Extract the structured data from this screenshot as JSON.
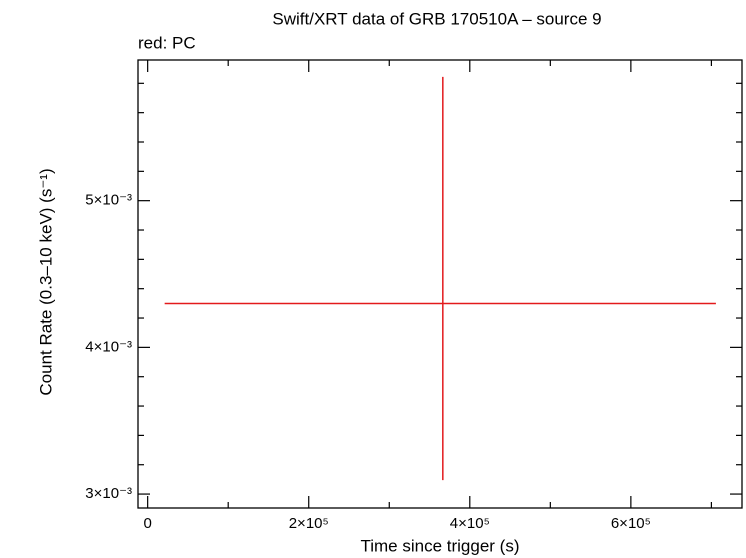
{
  "chart_data": {
    "type": "errorbar",
    "title": "Swift/XRT data of GRB 170510A – source 9",
    "legend_text": "red: PC",
    "x_label": "Time since trigger (s)",
    "y_label": "Count Rate (0.3–10 keV) (s⁻¹)",
    "xlim": [
      -12000,
      738000
    ],
    "ylim": [
      0.002905,
      0.005959
    ],
    "xticks": [
      0,
      {
        "value": 200000,
        "label": "2×10⁵"
      },
      {
        "value": 400000,
        "label": "4×10⁵"
      },
      {
        "value": 600000,
        "label": "6×10⁵"
      }
    ],
    "xminor_ticks": [
      100000,
      300000,
      500000,
      700000
    ],
    "yticks": [
      {
        "value": 0.003,
        "label": "3×10⁻³"
      },
      {
        "value": 0.004,
        "label": "4×10⁻³"
      },
      {
        "value": 0.005,
        "label": "5×10⁻³"
      }
    ],
    "yminor_ticks": [
      0.0032,
      0.0034,
      0.0036,
      0.0038,
      0.0042,
      0.0044,
      0.0046,
      0.0048,
      0.0052,
      0.0054,
      0.0056,
      0.0058
    ],
    "series": [
      {
        "color": "#e31a1c",
        "x": [
          366500
        ],
        "xerr_minus": [
          345400
        ],
        "xerr_plus": [
          339100
        ],
        "y": [
          0.004299
        ],
        "yerr_minus": [
          0.001204
        ],
        "yerr_plus": [
          0.001545
        ]
      }
    ]
  }
}
